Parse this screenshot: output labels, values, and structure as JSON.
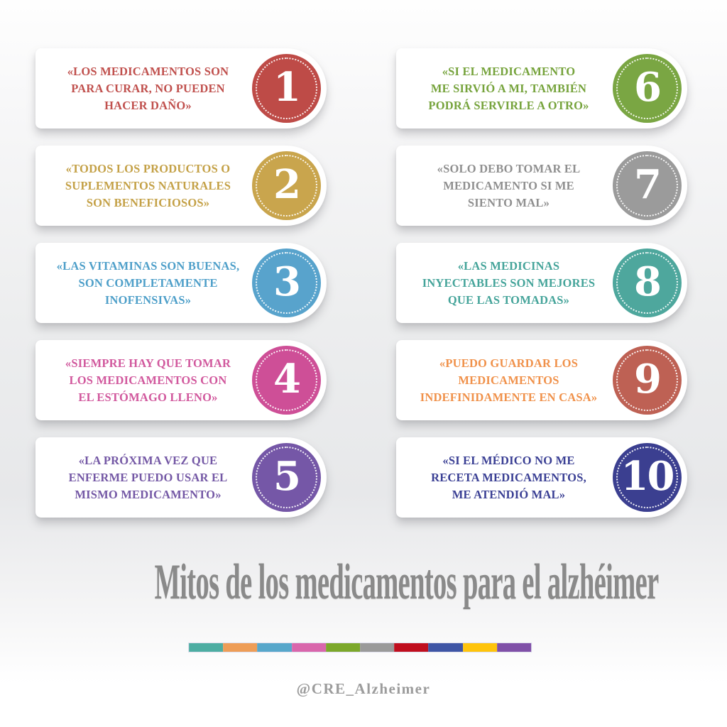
{
  "title": "Mitos de los medicamentos para el alzhéimer",
  "footer": "@CRE_Alzheimer",
  "cards": [
    {
      "number": "1",
      "text": "«LOS MEDICAMENTOS SON\nPARA CURAR, NO PUEDEN\nHACER DAÑO»",
      "text_color": "#C0504D",
      "circle_color": "#BE4B47"
    },
    {
      "number": "2",
      "text": "«TODOS LOS PRODUCTOS O\nSUPLEMENTOS NATURALES\nSON BENEFICIOSOS»",
      "text_color": "#C4A147",
      "circle_color": "#C9A54D"
    },
    {
      "number": "3",
      "text": "«LAS VITAMINAS SON BUENAS,\nSON COMPLETAMENTE\nINOFENSIVAS»",
      "text_color": "#4E9FC9",
      "circle_color": "#58A3CC"
    },
    {
      "number": "4",
      "text": "«SIEMPRE HAY QUE TOMAR\nLOS MEDICAMENTOS CON\nEL ESTÓMAGO LLENO»",
      "text_color": "#D1589D",
      "circle_color": "#CE4F97"
    },
    {
      "number": "5",
      "text": "«LA PRÓXIMA VEZ QUE\nENFERME PUEDO USAR EL\nMISMO MEDICAMENTO»",
      "text_color": "#7458A5",
      "circle_color": "#7557A7"
    },
    {
      "number": "6",
      "text": "«SI EL MEDICAMENTO\nME SIRVIÓ A MI, TAMBIÉN\nPODRÁ SERVIRLE A OTRO»",
      "text_color": "#76A33C",
      "circle_color": "#7AA643"
    },
    {
      "number": "7",
      "text": "«SOLO DEBO TOMAR EL\nMEDICAMENTO SI ME\nSIENTO MAL»",
      "text_color": "#8F8F8F",
      "circle_color": "#9B9B9B"
    },
    {
      "number": "8",
      "text": "«LAS MEDICINAS\nINYECTABLES SON MEJORES\nQUE LAS TOMADAS»",
      "text_color": "#45A49A",
      "circle_color": "#4EA79D"
    },
    {
      "number": "9",
      "text": "«PUEDO GUARDAR LOS\nMEDICAMENTOS\nINDEFINIDAMENTE EN CASA»",
      "text_color": "#F0914A",
      "circle_color": "#BE6154"
    },
    {
      "number": "10",
      "text": "«SI EL MÉDICO NO ME\nRECETA MEDICAMENTOS,\nME ATENDIÓ MAL»",
      "text_color": "#3A3F94",
      "circle_color": "#3B3F90"
    }
  ],
  "divider_colors": [
    "#4DADA2",
    "#EE9D57",
    "#57A7CB",
    "#D966AC",
    "#7CA82B",
    "#9A9A9A",
    "#C00E1E",
    "#3E55A5",
    "#FFC40B",
    "#8050A8"
  ]
}
